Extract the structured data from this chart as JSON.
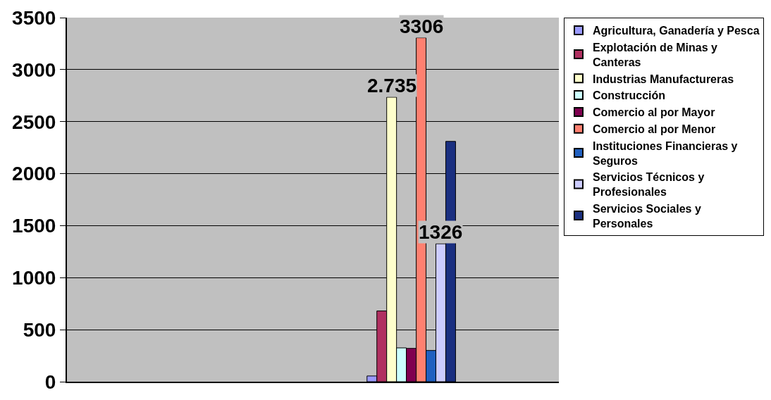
{
  "chart_data": {
    "type": "bar",
    "categories": [
      null,
      null,
      null,
      null,
      null
    ],
    "ylim": [
      0,
      3500
    ],
    "yticks": [
      0,
      500,
      1000,
      1500,
      2000,
      2500,
      3000,
      3500
    ],
    "grid": "y",
    "legend": "right",
    "tick_labels": "y",
    "series": [
      {
        "name": "Agricultura, Ganadería y Pesca",
        "color": "#9999ff",
        "values": [
          null,
          null,
          null,
          55,
          null
        ]
      },
      {
        "name": "Explotación de Minas y Canteras",
        "color": "#b03060",
        "values": [
          null,
          null,
          null,
          680,
          null
        ]
      },
      {
        "name": "Industrias Manufactureras",
        "color": "#ffffcc",
        "values": [
          null,
          null,
          null,
          2735,
          null
        ],
        "value_labels": [
          null,
          null,
          null,
          "2.735",
          null
        ]
      },
      {
        "name": "Construcción",
        "color": "#ccffff",
        "values": [
          null,
          null,
          null,
          325,
          null
        ]
      },
      {
        "name": "Comercio al por Mayor",
        "color": "#800050",
        "values": [
          null,
          null,
          null,
          320,
          null
        ]
      },
      {
        "name": "Comercio al por Menor",
        "color": "#ff8070",
        "values": [
          null,
          null,
          null,
          3306,
          null
        ],
        "value_labels": [
          null,
          null,
          null,
          "3306",
          null
        ]
      },
      {
        "name": "Instituciones Financieras y Seguros",
        "color": "#2060c0",
        "values": [
          null,
          null,
          null,
          300,
          null
        ]
      },
      {
        "name": "Servicios Técnicos y Profesionales",
        "color": "#ccccff",
        "values": [
          null,
          null,
          null,
          1326,
          null
        ],
        "value_labels": [
          null,
          null,
          null,
          "1326",
          null
        ]
      },
      {
        "name": "Servicios Sociales y Personales",
        "color": "#1a2f80",
        "values": [
          null,
          null,
          null,
          2310,
          null
        ]
      }
    ]
  }
}
